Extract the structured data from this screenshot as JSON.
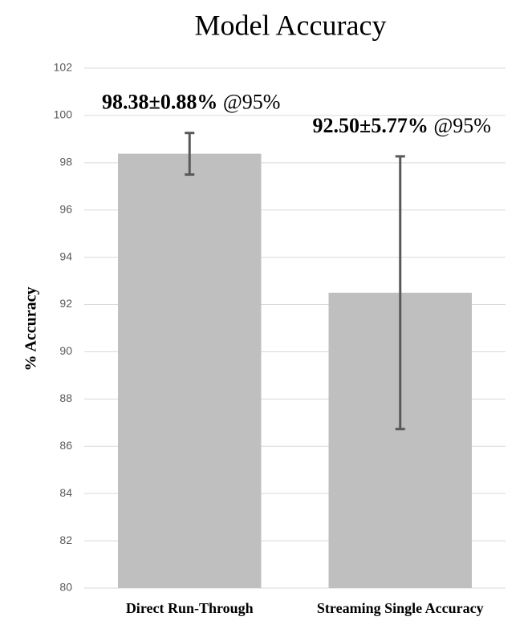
{
  "chart_data": {
    "type": "bar",
    "title": "Model Accuracy",
    "y_label": "% Accuracy",
    "categories": [
      "Direct Run-Through",
      "Streaming Single Accuracy"
    ],
    "values": [
      98.38,
      92.5
    ],
    "errors": [
      0.88,
      5.77
    ],
    "value_labels": [
      "98.38±0.88%",
      "92.50±5.77%"
    ],
    "confidence_labels": [
      "@95%",
      "@95%"
    ],
    "color": "#bfbfbf",
    "error_color": "#595959",
    "ylim": [
      80,
      102
    ],
    "yticks": [
      80,
      82,
      84,
      86,
      88,
      90,
      92,
      94,
      96,
      98,
      100,
      102
    ],
    "grid": true
  }
}
